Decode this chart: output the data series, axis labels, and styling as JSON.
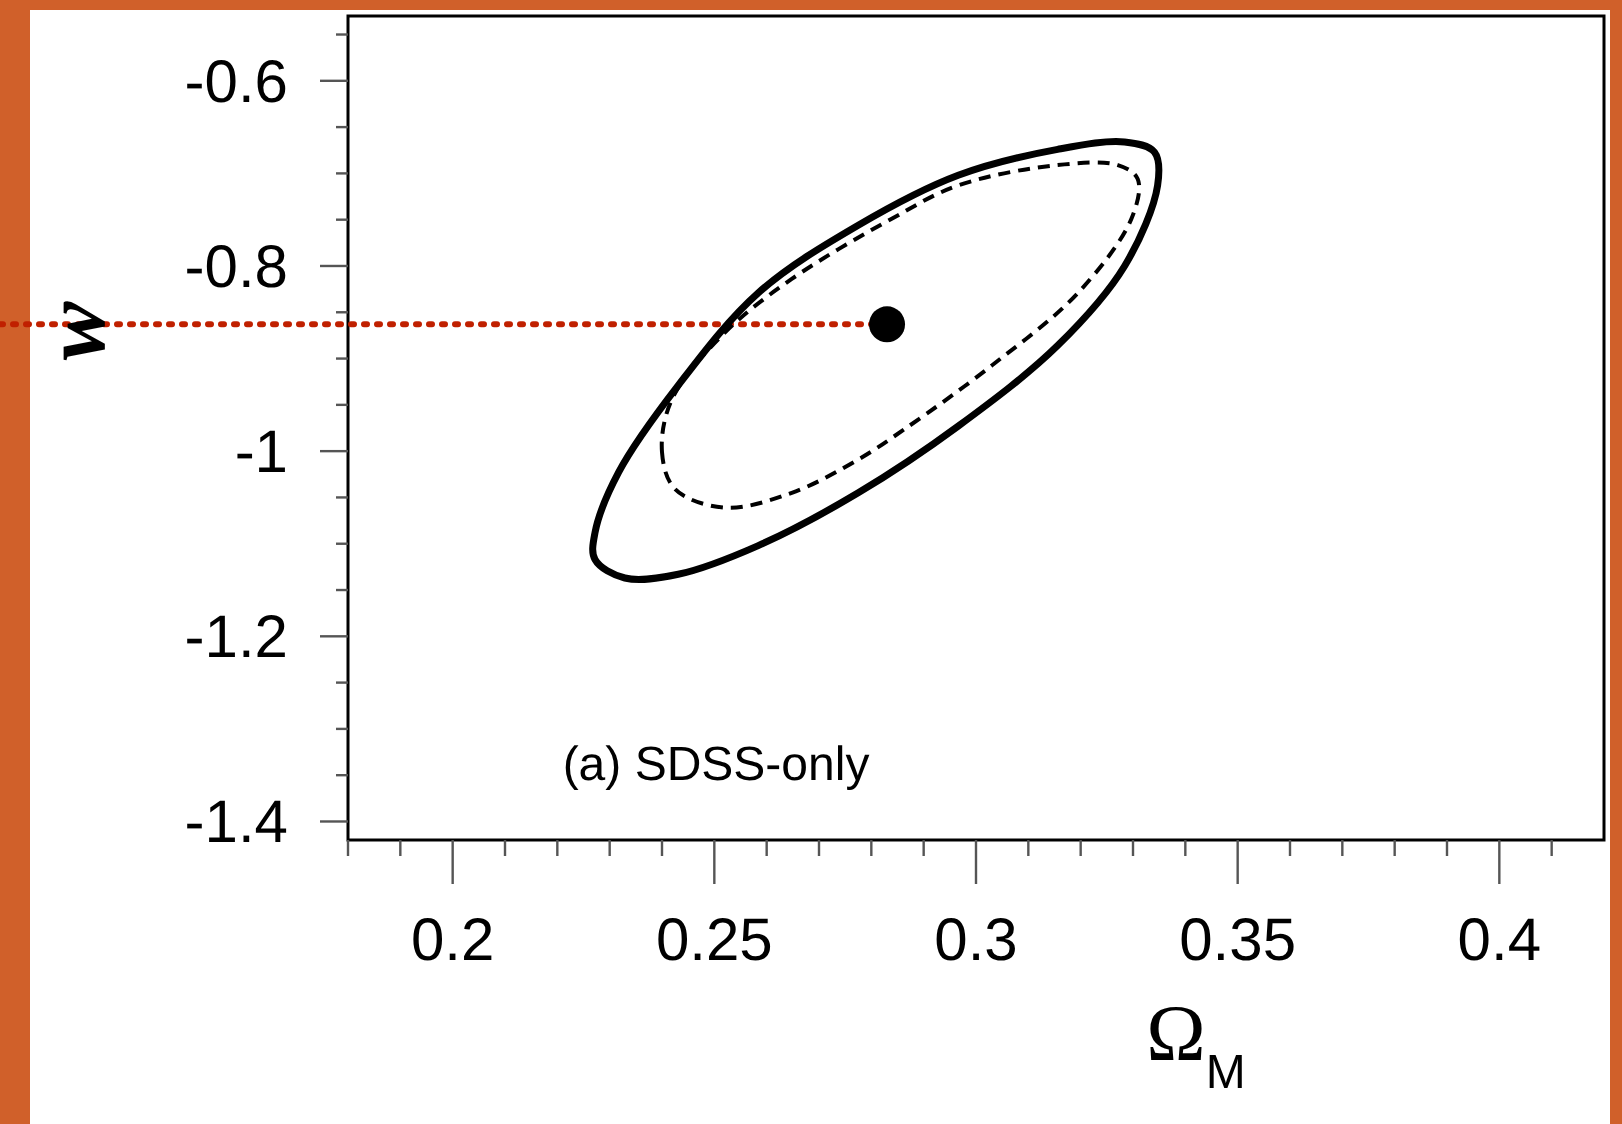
{
  "chart_data": {
    "type": "scatter",
    "xlabel": "Ω$_{M}$",
    "ylabel": "w",
    "annotations": [
      "(a) SDSS-only"
    ],
    "xlim": [
      0.18,
      0.42
    ],
    "ylim": [
      -1.42,
      -0.53
    ],
    "xticks": [
      {
        "value": 0.18,
        "label": null
      },
      {
        "value": 0.19,
        "label": null
      },
      0.2,
      {
        "value": 0.21,
        "label": null
      },
      {
        "value": 0.22,
        "label": null
      },
      {
        "value": 0.23,
        "label": null
      },
      {
        "value": 0.24,
        "label": null
      },
      0.25,
      {
        "value": 0.26,
        "label": null
      },
      {
        "value": 0.27,
        "label": null
      },
      {
        "value": 0.28,
        "label": null
      },
      {
        "value": 0.29,
        "label": null
      },
      0.3,
      {
        "value": 0.31,
        "label": null
      },
      {
        "value": 0.32,
        "label": null
      },
      {
        "value": 0.33,
        "label": null
      },
      {
        "value": 0.34,
        "label": null
      },
      0.35,
      {
        "value": 0.36,
        "label": null
      },
      {
        "value": 0.37,
        "label": null
      },
      {
        "value": 0.38,
        "label": null
      },
      {
        "value": 0.39,
        "label": null
      },
      0.4,
      {
        "value": 0.41,
        "label": null
      }
    ],
    "yticks": [
      {
        "value": -0.55,
        "label": null
      },
      -0.6,
      {
        "value": -0.65,
        "label": null
      },
      {
        "value": -0.7,
        "label": null
      },
      {
        "value": -0.75,
        "label": null
      },
      -0.8,
      {
        "value": -0.85,
        "label": null
      },
      {
        "value": -0.9,
        "label": null
      },
      {
        "value": -0.95,
        "label": null
      },
      -1,
      {
        "value": -1.05,
        "label": null
      },
      {
        "value": -1.1,
        "label": null
      },
      {
        "value": -1.15,
        "label": null
      },
      -1.2,
      {
        "value": -1.25,
        "label": null
      },
      {
        "value": -1.3,
        "label": null
      },
      {
        "value": -1.35,
        "label": null
      },
      -1.4
    ],
    "ref_lines": [
      {
        "axis": "y",
        "value": -0.863,
        "color": "#c02000",
        "line_style": "dotted"
      }
    ],
    "series": [
      {
        "type": "scatter",
        "color": "#000000",
        "marker": "circle",
        "x": [
          0.283
        ],
        "values": [
          -0.863
        ]
      }
    ]
  }
}
